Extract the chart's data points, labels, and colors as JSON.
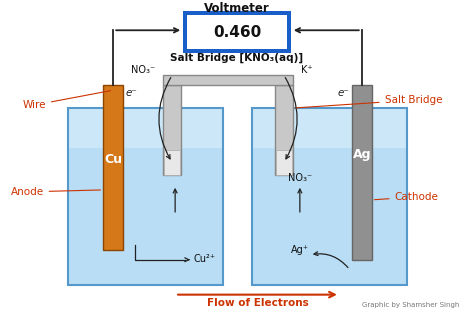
{
  "bg_color": "#ffffff",
  "voltmeter_box_color": "#1a5fc8",
  "voltmeter_text": "0.460",
  "voltmeter_label": "Voltmeter",
  "salt_bridge_label": "Salt Bridge [KNO₃(aq)]",
  "salt_bridge_side_label": "Salt Bridge",
  "wire_label": "Wire",
  "anode_label": "Anode",
  "cathode_label": "Cathode",
  "cu_label": "Cu",
  "ag_label": "Ag",
  "cu2_label": "Cu²⁺",
  "ag_plus_label": "Ag⁺",
  "no3_left_label": "NO₃⁻",
  "no3_right_label": "NO₃⁻",
  "k_plus_label": "K⁺",
  "flow_label": "Flow of Electrons",
  "graphic_label": "Graphic by Shamsher Singh",
  "electron_left": "e⁻",
  "electron_right": "e⁻",
  "tank_left_color": "#b8ddf5",
  "tank_right_color": "#b8ddf5",
  "tank_border_color": "#5599cc",
  "cu_electrode_color": "#d4781a",
  "ag_electrode_color": "#909090",
  "salt_bridge_tube_color": "#c8c8c8",
  "label_color": "#cc3300",
  "wire_color": "#222222",
  "flow_arrow_color": "#cc3300",
  "voltmeter_inner_bg": "#ffffff"
}
